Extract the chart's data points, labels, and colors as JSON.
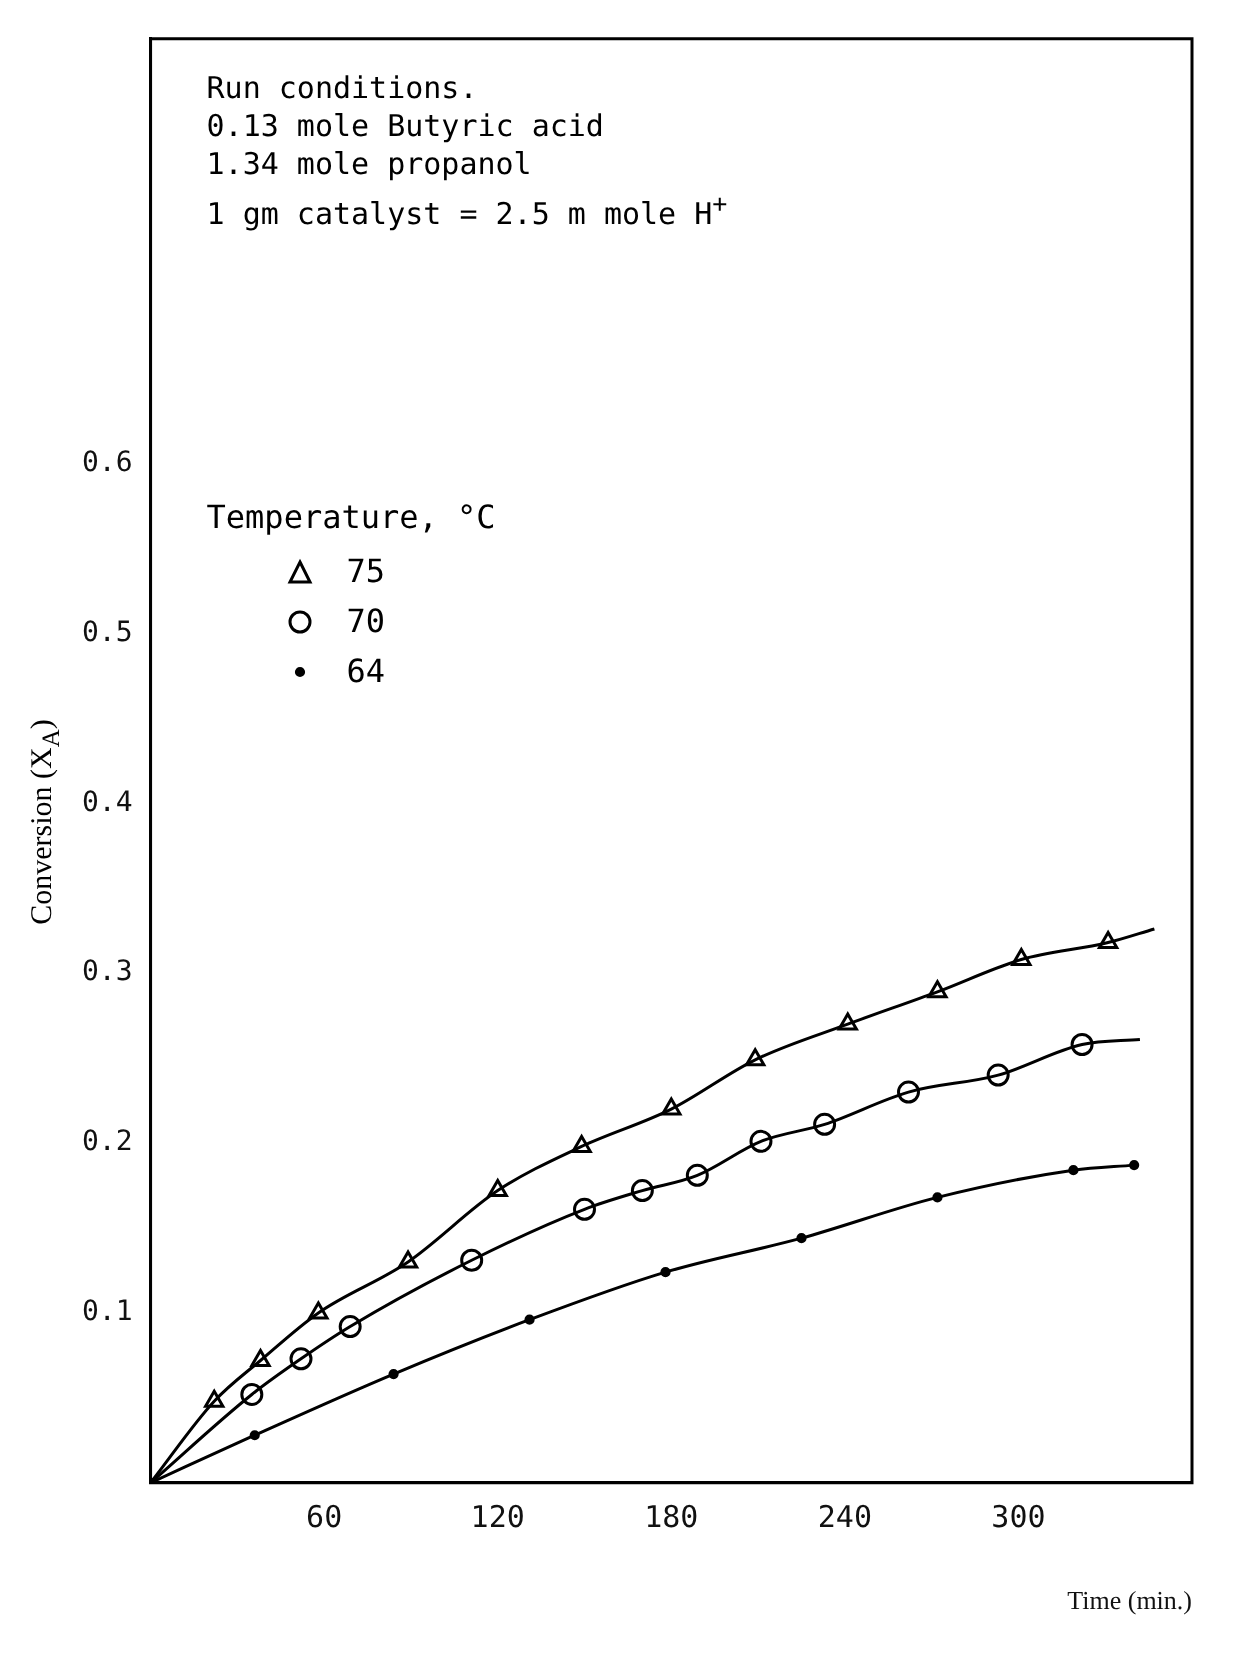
{
  "chart_data": {
    "type": "line",
    "xlabel": "Time (min.)",
    "ylabel": "Conversion (X$_{A}$)",
    "legend_title": "Temperature, °C",
    "legend": "top left",
    "grid": false,
    "annotations": [
      "Run conditions.",
      "0.13 mole Butyric acid",
      "1.34 mole propanol",
      "1 gm catalyst = 2.5 m mole H$^{+}$"
    ],
    "xlim": [
      0,
      360
    ],
    "xticks": [
      60,
      120,
      180,
      240,
      300
    ],
    "ylim": [
      0,
      0.85
    ],
    "yticks": [
      0.1,
      0.2,
      0.3,
      0.4,
      0.5,
      0.6
    ],
    "series": [
      {
        "name": "75",
        "type": "scatter",
        "marker": "triangle",
        "color": "#000000",
        "x": [
          22,
          38,
          58,
          89,
          120,
          149,
          180,
          209,
          241,
          272,
          301,
          331
        ],
        "values": [
          0.048,
          0.072,
          0.1,
          0.13,
          0.172,
          0.198,
          0.22,
          0.249,
          0.27,
          0.289,
          0.308,
          0.318
        ]
      },
      {
        "name": "70",
        "type": "scatter",
        "marker": "circle",
        "color": "#000000",
        "x": [
          35,
          52,
          69,
          111,
          150,
          170,
          189,
          211,
          233,
          262,
          293,
          322
        ],
        "values": [
          0.052,
          0.073,
          0.092,
          0.131,
          0.161,
          0.172,
          0.181,
          0.201,
          0.211,
          0.23,
          0.24,
          0.258
        ]
      },
      {
        "name": "64",
        "type": "line",
        "marker": "circle",
        "color": "#000000",
        "x": [
          0,
          36,
          84,
          131,
          178,
          225,
          272,
          319,
          340
        ],
        "values": [
          0,
          0.028,
          0.064,
          0.096,
          0.124,
          0.144,
          0.168,
          0.184,
          0.187
        ]
      },
      {
        "type": "line",
        "marker": "none",
        "color": "#000000",
        "x": [
          0,
          22,
          38,
          58,
          89,
          120,
          149,
          180,
          209,
          241,
          272,
          301,
          331,
          347
        ],
        "values": [
          0,
          0.048,
          0.072,
          0.1,
          0.13,
          0.172,
          0.198,
          0.22,
          0.249,
          0.27,
          0.289,
          0.308,
          0.318,
          0.326
        ]
      },
      {
        "type": "line",
        "marker": "none",
        "color": "#000000",
        "x": [
          0,
          35,
          52,
          69,
          111,
          150,
          170,
          189,
          211,
          233,
          262,
          293,
          322,
          342
        ],
        "values": [
          0,
          0.052,
          0.073,
          0.092,
          0.131,
          0.161,
          0.172,
          0.181,
          0.201,
          0.211,
          0.23,
          0.24,
          0.258,
          0.261
        ]
      }
    ]
  }
}
